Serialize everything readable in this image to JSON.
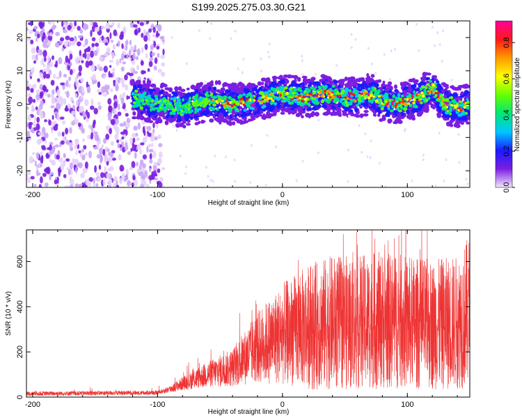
{
  "title": "S199.2025.275.03.30.G21",
  "chart_data": [
    {
      "type": "heatmap",
      "title": "S199.2025.275.03.30.G21",
      "xlabel": "Height of straight line (km)",
      "ylabel": "Frequency (Hz)",
      "xlim": [
        -205,
        150
      ],
      "ylim": [
        -25,
        25
      ],
      "xticks": [
        -200,
        -100,
        0,
        100
      ],
      "xtick_labels": [
        "-200",
        "-100",
        "0",
        "100"
      ],
      "yticks": [
        -20,
        -10,
        0,
        10,
        20
      ],
      "ytick_labels": [
        "-20",
        "-10",
        "0",
        "10",
        "20"
      ],
      "colorbar": {
        "label": "Normalized spectral amplitude",
        "range": [
          0.0,
          0.92
        ],
        "ticks": [
          0.0,
          0.2,
          0.4,
          0.6,
          0.8
        ],
        "tick_labels": [
          "0.0",
          "0.2",
          "0.4",
          "0.6",
          "0.8"
        ],
        "colormap": [
          "#f4e6ff",
          "#7b1fe0",
          "#1a1aff",
          "#00c8ff",
          "#00e676",
          "#66ff00",
          "#ffff00",
          "#ff9900",
          "#ff1a1a",
          "#ff0099"
        ]
      },
      "noise_region": {
        "x_range": [
          -205,
          -95
        ],
        "y_range": [
          -25,
          25
        ]
      },
      "signal_ridge": {
        "x": [
          -120,
          -100,
          -80,
          -60,
          -40,
          -20,
          0,
          20,
          30,
          40,
          50,
          60,
          70,
          80,
          90,
          100,
          110,
          120,
          130,
          140,
          150
        ],
        "y": [
          2,
          0,
          -1,
          1,
          0,
          1,
          3,
          2,
          3,
          3,
          2,
          2,
          3,
          1,
          0,
          1,
          2,
          5,
          0,
          -1,
          0
        ]
      }
    },
    {
      "type": "line",
      "xlabel": "Height of straight line (km)",
      "ylabel": "SNR (10 * v/v)",
      "xlim": [
        -205,
        150
      ],
      "ylim": [
        0,
        740
      ],
      "xticks": [
        -200,
        -100,
        0,
        100
      ],
      "xtick_labels": [
        "-200",
        "-100",
        "0",
        "100"
      ],
      "yticks": [
        0,
        200,
        400,
        600
      ],
      "ytick_labels": [
        "0",
        "200",
        "400",
        "600"
      ],
      "color": "#ee3333",
      "trend": {
        "x": [
          -205,
          -100,
          -90,
          -80,
          -60,
          -40,
          -20,
          0,
          20,
          40,
          60,
          80,
          100,
          120,
          140,
          150
        ],
        "y": [
          15,
          20,
          35,
          60,
          100,
          130,
          220,
          280,
          310,
          330,
          330,
          340,
          330,
          320,
          330,
          380
        ]
      }
    }
  ]
}
